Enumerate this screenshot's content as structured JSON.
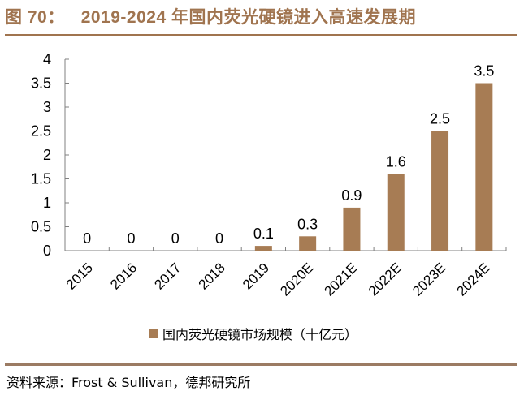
{
  "header": {
    "figure_label": "图 70：",
    "title": "2019-2024 年国内荧光硬镜进入高速发展期"
  },
  "footer": {
    "source": "资料来源：Frost & Sullivan，德邦研究所"
  },
  "colors": {
    "accent": "#a0744f",
    "bar": "#a77c54",
    "axis": "#808080"
  },
  "chart_data": {
    "type": "bar",
    "title": "2019-2024 年国内荧光硬镜进入高速发展期",
    "categories": [
      "2015",
      "2016",
      "2017",
      "2018",
      "2019",
      "2020E",
      "2021E",
      "2022E",
      "2023E",
      "2024E"
    ],
    "series": [
      {
        "name": "国内荧光硬镜市场规模（十亿元）",
        "values": [
          0,
          0,
          0,
          0,
          0.1,
          0.3,
          0.9,
          1.6,
          2.5,
          3.5
        ],
        "labels": [
          "0",
          "0",
          "0",
          "0",
          "0.1",
          "0.3",
          "0.9",
          "1.6",
          "2.5",
          "3.5"
        ]
      }
    ],
    "yticks": [
      "0",
      "0.5",
      "1",
      "1.5",
      "2",
      "2.5",
      "3",
      "3.5",
      "4"
    ],
    "ytick_values": [
      0,
      0.5,
      1,
      1.5,
      2,
      2.5,
      3,
      3.5,
      4
    ],
    "xlabel": "",
    "ylabel": "",
    "ylim": [
      0,
      4
    ],
    "grid": false,
    "legend_position": "bottom-center"
  }
}
